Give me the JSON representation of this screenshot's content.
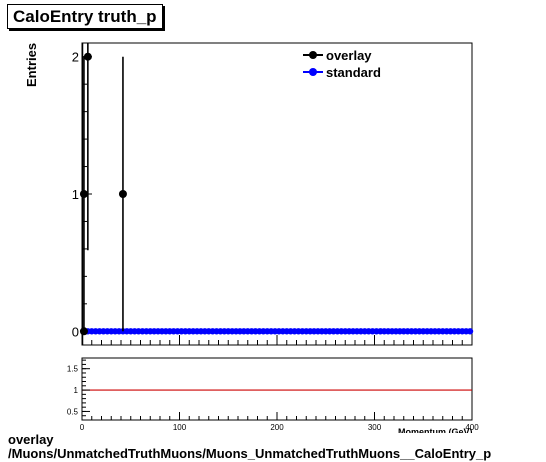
{
  "title": "CaloEntry truth_p",
  "footer": {
    "line1": "overlay",
    "line2": "/Muons/UnmatchedTruthMuons/Muons_UnmatchedTruthMuons__CaloEntry_p"
  },
  "colors": {
    "overlay": "#000000",
    "standard": "#0000ff",
    "ratio_line": "#cc0000"
  },
  "chart_data": [
    {
      "type": "scatter",
      "ylabel": "Entries",
      "xlabel": "Momentum (GeV)",
      "xlim": [
        0,
        400
      ],
      "ylim": [
        -0.1,
        2.1
      ],
      "yticks": [
        0,
        1,
        2
      ],
      "legend": "top-right",
      "series": [
        {
          "name": "overlay",
          "color": "#000000",
          "points": [
            {
              "x": 2,
              "y": 1,
              "err": 1
            },
            {
              "x": 6,
              "y": 2,
              "err": 1.41
            },
            {
              "x": 42,
              "y": 1,
              "err": 1
            }
          ]
        },
        {
          "name": "standard",
          "color": "#0000ff",
          "bin_start": 2,
          "bin_width": 4,
          "n_bins": 100,
          "value": 0
        }
      ]
    },
    {
      "type": "line",
      "xlim": [
        0,
        400
      ],
      "ylim": [
        0.3,
        1.75
      ],
      "xticks": [
        0,
        100,
        200,
        300,
        400
      ],
      "yticks": [
        0.5,
        1,
        1.5
      ],
      "reference_line": 1
    }
  ]
}
